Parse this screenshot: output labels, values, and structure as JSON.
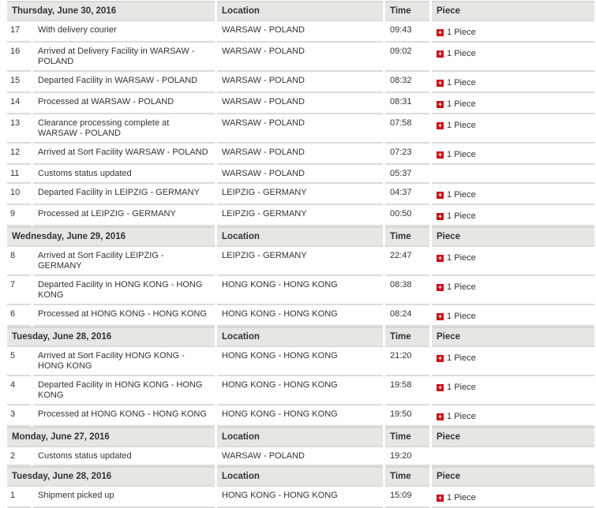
{
  "columns": {
    "location": "Location",
    "time": "Time",
    "piece": "Piece"
  },
  "accent_color": "#d40511",
  "groups": [
    {
      "date": "Thursday, June 30, 2016",
      "events": [
        {
          "num": "17",
          "desc": "With delivery courier",
          "location": "WARSAW - POLAND",
          "time": "09:43",
          "piece": "1 Piece"
        },
        {
          "num": "16",
          "desc": "Arrived at Delivery Facility in WARSAW - POLAND",
          "location": "WARSAW - POLAND",
          "time": "09:02",
          "piece": "1 Piece"
        },
        {
          "num": "15",
          "desc": "Departed Facility in WARSAW - POLAND",
          "location": "WARSAW - POLAND",
          "time": "08:32",
          "piece": "1 Piece"
        },
        {
          "num": "14",
          "desc": "Processed at WARSAW - POLAND",
          "location": "WARSAW - POLAND",
          "time": "08:31",
          "piece": "1 Piece"
        },
        {
          "num": "13",
          "desc": "Clearance processing complete at WARSAW - POLAND",
          "location": "WARSAW - POLAND",
          "time": "07:58",
          "piece": "1 Piece"
        },
        {
          "num": "12",
          "desc": "Arrived at Sort Facility WARSAW - POLAND",
          "location": "WARSAW - POLAND",
          "time": "07:23",
          "piece": "1 Piece"
        },
        {
          "num": "11",
          "desc": "Customs status updated",
          "location": "WARSAW - POLAND",
          "time": "05:37",
          "piece": ""
        },
        {
          "num": "10",
          "desc": "Departed Facility in LEIPZIG - GERMANY",
          "location": "LEIPZIG - GERMANY",
          "time": "04:37",
          "piece": "1 Piece"
        },
        {
          "num": "9",
          "desc": "Processed at LEIPZIG - GERMANY",
          "location": "LEIPZIG - GERMANY",
          "time": "00:50",
          "piece": "1 Piece"
        }
      ]
    },
    {
      "date": "Wednesday, June 29, 2016",
      "events": [
        {
          "num": "8",
          "desc": "Arrived at Sort Facility LEIPZIG - GERMANY",
          "location": "LEIPZIG - GERMANY",
          "time": "22:47",
          "piece": "1 Piece"
        },
        {
          "num": "7",
          "desc": "Departed Facility in HONG KONG - HONG KONG",
          "location": "HONG KONG - HONG KONG",
          "time": "08:38",
          "piece": "1 Piece"
        },
        {
          "num": "6",
          "desc": "Processed at HONG KONG - HONG KONG",
          "location": "HONG KONG - HONG KONG",
          "time": "08:24",
          "piece": "1 Piece"
        }
      ]
    },
    {
      "date": "Tuesday, June 28, 2016",
      "events": [
        {
          "num": "5",
          "desc": "Arrived at Sort Facility HONG KONG - HONG KONG",
          "location": "HONG KONG - HONG KONG",
          "time": "21:20",
          "piece": "1 Piece"
        },
        {
          "num": "4",
          "desc": "Departed Facility in HONG KONG - HONG KONG",
          "location": "HONG KONG - HONG KONG",
          "time": "19:58",
          "piece": "1 Piece"
        },
        {
          "num": "3",
          "desc": "Processed at HONG KONG - HONG KONG",
          "location": "HONG KONG - HONG KONG",
          "time": "19:50",
          "piece": "1 Piece"
        }
      ]
    },
    {
      "date": "Monday, June 27, 2016",
      "events": [
        {
          "num": "2",
          "desc": "Customs status updated",
          "location": "WARSAW - POLAND",
          "time": "19:20",
          "piece": ""
        }
      ]
    },
    {
      "date": "Tuesday, June 28, 2016",
      "events": [
        {
          "num": "1",
          "desc": "Shipment picked up",
          "location": "HONG KONG - HONG KONG",
          "time": "15:09",
          "piece": "1 Piece"
        }
      ]
    }
  ]
}
